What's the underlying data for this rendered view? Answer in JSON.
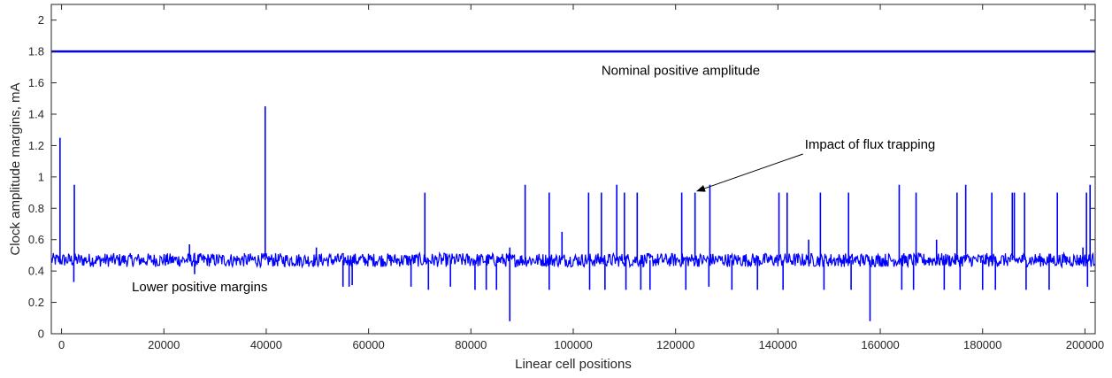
{
  "chart_data": {
    "type": "line",
    "xlabel": "Linear cell positions",
    "ylabel": "Clock amplitude margins, mA",
    "xlim": [
      -2000,
      202000
    ],
    "ylim": [
      0,
      2.1
    ],
    "x_ticks": [
      0,
      20000,
      40000,
      60000,
      80000,
      100000,
      120000,
      140000,
      160000,
      180000,
      200000
    ],
    "y_ticks": [
      0,
      0.2,
      0.4,
      0.6,
      0.8,
      1,
      1.2,
      1.4,
      1.6,
      1.8,
      2
    ],
    "x_tick_labels": [
      "0",
      "20000",
      "40000",
      "60000",
      "80000",
      "100000",
      "120000",
      "140000",
      "160000",
      "180000",
      "200000"
    ],
    "y_tick_labels": [
      "0",
      "0.2",
      "0.4",
      "0.6",
      "0.8",
      "1",
      "1.2",
      "1.4",
      "1.6",
      "1.8",
      "2"
    ],
    "grid": false,
    "line_color": "#0000ff",
    "series": [
      {
        "key": "nominal",
        "x": [
          -2000,
          202000
        ],
        "y": [
          1.8,
          1.8
        ]
      },
      {
        "key": "lower_margins",
        "baseline": 0.47,
        "noise_band": [
          0.42,
          0.53
        ],
        "x_range": [
          -2000,
          202000
        ],
        "spikes_up": [
          [
            -300,
            1.25
          ],
          [
            2500,
            0.95
          ],
          [
            25000,
            0.57
          ],
          [
            39800,
            1.45
          ],
          [
            49800,
            0.55
          ],
          [
            71000,
            0.9
          ],
          [
            87600,
            0.55
          ],
          [
            90600,
            0.95
          ],
          [
            95300,
            0.9
          ],
          [
            97800,
            0.65
          ],
          [
            103000,
            0.9
          ],
          [
            105500,
            0.9
          ],
          [
            108500,
            0.95
          ],
          [
            110000,
            0.9
          ],
          [
            112500,
            0.9
          ],
          [
            121200,
            0.9
          ],
          [
            123800,
            0.9
          ],
          [
            126700,
            0.95
          ],
          [
            140200,
            0.9
          ],
          [
            141800,
            0.9
          ],
          [
            146000,
            0.6
          ],
          [
            148300,
            0.9
          ],
          [
            153800,
            0.9
          ],
          [
            163700,
            0.95
          ],
          [
            167000,
            0.9
          ],
          [
            171000,
            0.6
          ],
          [
            175000,
            0.9
          ],
          [
            176700,
            0.95
          ],
          [
            181800,
            0.9
          ],
          [
            185800,
            0.9
          ],
          [
            186200,
            0.9
          ],
          [
            188200,
            0.9
          ],
          [
            194600,
            0.9
          ],
          [
            199600,
            0.55
          ],
          [
            200300,
            0.9
          ],
          [
            201000,
            0.95
          ]
        ],
        "spikes_down": [
          [
            2400,
            0.33
          ],
          [
            26000,
            0.38
          ],
          [
            55000,
            0.3
          ],
          [
            56200,
            0.3
          ],
          [
            56800,
            0.31
          ],
          [
            68300,
            0.3
          ],
          [
            71700,
            0.28
          ],
          [
            76000,
            0.3
          ],
          [
            80800,
            0.28
          ],
          [
            83000,
            0.28
          ],
          [
            85000,
            0.28
          ],
          [
            87600,
            0.08
          ],
          [
            95300,
            0.28
          ],
          [
            103200,
            0.28
          ],
          [
            106200,
            0.28
          ],
          [
            110300,
            0.28
          ],
          [
            113200,
            0.28
          ],
          [
            115000,
            0.28
          ],
          [
            122000,
            0.28
          ],
          [
            126500,
            0.3
          ],
          [
            131000,
            0.28
          ],
          [
            136000,
            0.28
          ],
          [
            141000,
            0.28
          ],
          [
            149000,
            0.28
          ],
          [
            154300,
            0.28
          ],
          [
            158000,
            0.08
          ],
          [
            164200,
            0.28
          ],
          [
            166500,
            0.28
          ],
          [
            172500,
            0.28
          ],
          [
            175600,
            0.28
          ],
          [
            180000,
            0.28
          ],
          [
            182500,
            0.28
          ],
          [
            188500,
            0.28
          ],
          [
            193000,
            0.28
          ],
          [
            200500,
            0.3
          ]
        ]
      }
    ],
    "annotations": [
      {
        "key": "nominal_label",
        "text": "Nominal positive amplitude",
        "at": [
          121000,
          1.65
        ]
      },
      {
        "key": "flux_label",
        "text": "Impact of flux trapping",
        "at": [
          158000,
          1.18
        ],
        "arrow_to": [
          124200,
          0.91
        ]
      },
      {
        "key": "lower_label",
        "text": "Lower positive margins",
        "at": [
          27000,
          0.27
        ]
      }
    ]
  }
}
